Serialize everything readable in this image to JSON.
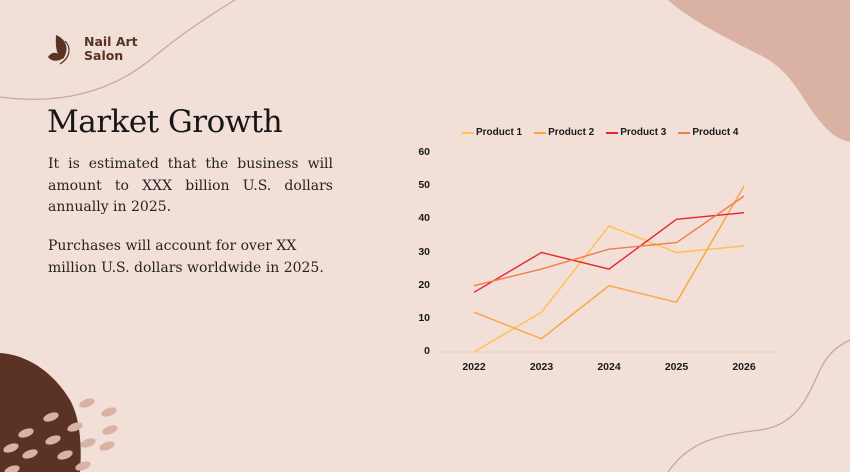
{
  "brand": {
    "name_line1": "Nail Art",
    "name_line2": "Salon",
    "logo_icon": "leaf-wings-icon"
  },
  "slide": {
    "title": "Market Growth",
    "paragraph1": "It is estimated that the business will amount to XXX billion U.S. dollars annually in 2025.",
    "paragraph2": "Purchases will account for over XX million U.S. dollars worldwide in 2025."
  },
  "colors": {
    "background": "#f2dfd8",
    "dark_blob": "#5a3324",
    "light_blob": "#d9b2a4",
    "curve_line": "#c9a89b",
    "product1": "#ffc04d",
    "product2": "#f9a53a",
    "product3": "#e8262a",
    "product4": "#f47c4a"
  },
  "chart_data": {
    "type": "line",
    "title": "",
    "xlabel": "",
    "ylabel": "",
    "categories": [
      "2022",
      "2023",
      "2024",
      "2025",
      "2026"
    ],
    "yticks": [
      "0",
      "10",
      "20",
      "30",
      "40",
      "50",
      "60"
    ],
    "ylim": [
      0,
      60
    ],
    "grid": false,
    "legend_position": "top",
    "series": [
      {
        "name": "Product 1",
        "color": "#ffc04d",
        "values": [
          0,
          12,
          38,
          30,
          32
        ]
      },
      {
        "name": "Product 2",
        "color": "#f9a53a",
        "values": [
          12,
          4,
          20,
          15,
          50
        ]
      },
      {
        "name": "Product 3",
        "color": "#e8262a",
        "values": [
          18,
          30,
          25,
          40,
          42
        ]
      },
      {
        "name": "Product 4",
        "color": "#f47c4a",
        "values": [
          20,
          25,
          31,
          33,
          47
        ]
      }
    ]
  }
}
